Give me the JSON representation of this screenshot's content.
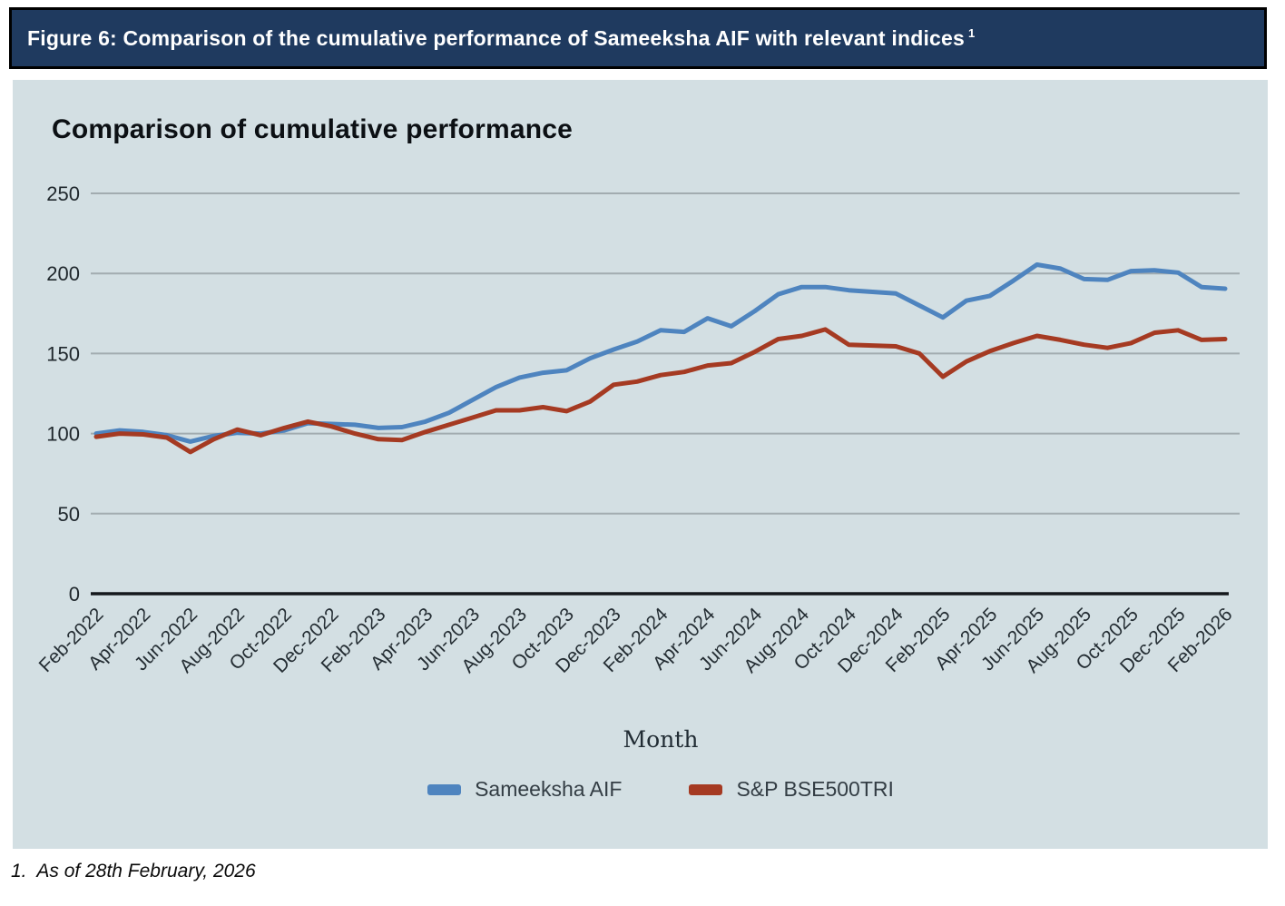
{
  "header": {
    "title": "Figure 6: Comparison of the cumulative performance of Sameeksha AIF with relevant indices",
    "superscript": "1"
  },
  "footnote": "1.  As of 28th February, 2026",
  "colors": {
    "header_bg": "#1f3a5f",
    "panel_bg": "#d3dfe3",
    "gridline": "#a2acb0",
    "axis": "#14181c",
    "sameeksha_blue": "#4e84bf",
    "bse_red": "#a53a22"
  },
  "chart_data": {
    "type": "line",
    "title": "Comparison of cumulative performance",
    "xlabel": "Month",
    "ylabel": "",
    "ylim": [
      0,
      250
    ],
    "yticks": [
      0,
      50,
      100,
      150,
      200,
      250
    ],
    "grid": true,
    "legend_position": "bottom",
    "x_tick_step": 2,
    "x": [
      "Feb-2022",
      "Mar-2022",
      "Apr-2022",
      "May-2022",
      "Jun-2022",
      "Jul-2022",
      "Aug-2022",
      "Sep-2022",
      "Oct-2022",
      "Nov-2022",
      "Dec-2022",
      "Jan-2023",
      "Feb-2023",
      "Mar-2023",
      "Apr-2023",
      "May-2023",
      "Jun-2023",
      "Jul-2023",
      "Aug-2023",
      "Sep-2023",
      "Oct-2023",
      "Nov-2023",
      "Dec-2023",
      "Jan-2024",
      "Feb-2024",
      "Mar-2024",
      "Apr-2024",
      "May-2024",
      "Jun-2024",
      "Jul-2024",
      "Aug-2024",
      "Sep-2024",
      "Oct-2024",
      "Nov-2024",
      "Dec-2024",
      "Jan-2025",
      "Feb-2025",
      "Mar-2025",
      "Apr-2025",
      "May-2025",
      "Jun-2025",
      "Jul-2025",
      "Aug-2025",
      "Sep-2025",
      "Oct-2025",
      "Nov-2025",
      "Dec-2025",
      "Jan-2026",
      "Feb-2026"
    ],
    "series": [
      {
        "name": "Sameeksha AIF",
        "color": "#4e84bf",
        "values": [
          100,
          102,
          101,
          99,
          95,
          98.5,
          100.5,
          100,
          102,
          106.5,
          106,
          105.5,
          103.5,
          104,
          107.5,
          113,
          121,
          129,
          135,
          138,
          139.5,
          147,
          152.5,
          157.5,
          164.5,
          163.5,
          172,
          167,
          176.5,
          187,
          191.5,
          191.5,
          189.5,
          188.5,
          187.5,
          180,
          172.5,
          183,
          186,
          195.5,
          205.5,
          203,
          196.5,
          196,
          201.5,
          202,
          200.5,
          191.5,
          190.5
        ]
      },
      {
        "name": "S&P BSE500TRI",
        "color": "#a53a22",
        "values": [
          98,
          100,
          99.5,
          97.5,
          88.5,
          96.5,
          102.5,
          99,
          103.5,
          107.5,
          104.5,
          100,
          96.5,
          96,
          101,
          105.5,
          110,
          114.5,
          114.5,
          116.5,
          114,
          120,
          130.5,
          132.5,
          136.5,
          138.5,
          142.5,
          144,
          151,
          159,
          161,
          165,
          155.5,
          155,
          154.5,
          150,
          135.5,
          145,
          151.5,
          156.5,
          161,
          158.5,
          155.5,
          153.5,
          156.5,
          163,
          164.5,
          158.5,
          159
        ]
      }
    ]
  }
}
